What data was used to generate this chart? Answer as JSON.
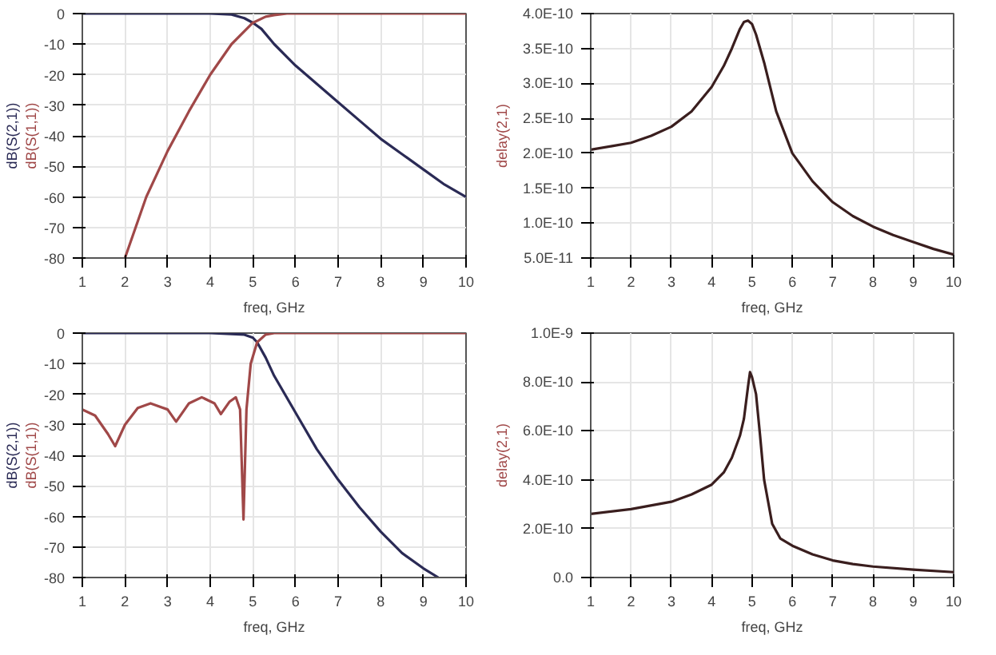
{
  "chart_data": [
    {
      "type": "line",
      "xlabel": "freq, GHz",
      "xlim": [
        1,
        10
      ],
      "xticks": [
        1,
        2,
        3,
        4,
        5,
        6,
        7,
        8,
        9,
        10
      ],
      "ylim": [
        -80,
        0
      ],
      "yticks": [
        -80,
        -70,
        -60,
        -50,
        -40,
        -30,
        -20,
        -10,
        0
      ],
      "grid": true,
      "series": [
        {
          "name": "dB(S(2,1))",
          "color": "#2a2a55",
          "x": [
            1,
            2,
            3,
            4,
            4.5,
            4.8,
            5,
            5.2,
            5.5,
            6,
            6.5,
            7,
            7.5,
            8,
            8.5,
            9,
            9.5,
            10
          ],
          "values": [
            0,
            0,
            0,
            0,
            -0.3,
            -1.5,
            -3,
            -5,
            -10,
            -17,
            -23,
            -29,
            -35,
            -41,
            -46,
            -51,
            -56,
            -60
          ]
        },
        {
          "name": "dB(S(1,1))",
          "color": "#a04848",
          "x": [
            2,
            2.5,
            3,
            3.5,
            4,
            4.5,
            5,
            5.3,
            5.5,
            5.8,
            6,
            7,
            8,
            9,
            10
          ],
          "values": [
            -80,
            -60,
            -45,
            -32,
            -20,
            -10,
            -3,
            -1,
            -0.5,
            0,
            0,
            0,
            0,
            0,
            0
          ]
        }
      ]
    },
    {
      "type": "line",
      "xlabel": "freq, GHz",
      "ylabel": "delay(2,1)",
      "xlim": [
        1,
        10
      ],
      "xticks": [
        1,
        2,
        3,
        4,
        5,
        6,
        7,
        8,
        9,
        10
      ],
      "ylim": [
        5e-11,
        4e-10
      ],
      "yticks": [
        {
          "value": 5e-11,
          "label": "5.0E-11"
        },
        {
          "value": 1e-10,
          "label": "1.0E-10"
        },
        {
          "value": 1.5e-10,
          "label": "1.5E-10"
        },
        {
          "value": 2e-10,
          "label": "2.0E-10"
        },
        {
          "value": 2.5e-10,
          "label": "2.5E-10"
        },
        {
          "value": 3e-10,
          "label": "3.0E-10"
        },
        {
          "value": 3.5e-10,
          "label": "3.5E-10"
        },
        {
          "value": 4e-10,
          "label": "4.0E-10"
        }
      ],
      "grid": true,
      "series": [
        {
          "color": "#3a1e1e",
          "x": [
            1,
            1.5,
            2,
            2.5,
            3,
            3.5,
            4,
            4.3,
            4.5,
            4.7,
            4.8,
            4.9,
            5,
            5.1,
            5.3,
            5.6,
            6,
            6.5,
            7,
            7.5,
            8,
            8.5,
            9,
            9.5,
            10
          ],
          "values": [
            2.05e-10,
            2.1e-10,
            2.15e-10,
            2.25e-10,
            2.38e-10,
            2.6e-10,
            2.95e-10,
            3.25e-10,
            3.5e-10,
            3.78e-10,
            3.88e-10,
            3.9e-10,
            3.85e-10,
            3.7e-10,
            3.3e-10,
            2.6e-10,
            2e-10,
            1.6e-10,
            1.3e-10,
            1.1e-10,
            9.5e-11,
            8.3e-11,
            7.3e-11,
            6.3e-11,
            5.5e-11
          ]
        }
      ]
    },
    {
      "type": "line",
      "xlabel": "freq, GHz",
      "xlim": [
        1,
        10
      ],
      "xticks": [
        1,
        2,
        3,
        4,
        5,
        6,
        7,
        8,
        9,
        10
      ],
      "ylim": [
        -80,
        0
      ],
      "yticks": [
        -80,
        -70,
        -60,
        -50,
        -40,
        -30,
        -20,
        -10,
        0
      ],
      "grid": true,
      "series": [
        {
          "name": "dB(S(2,1))",
          "color": "#2a2a55",
          "x": [
            1,
            2,
            3,
            4,
            4.8,
            5,
            5.1,
            5.3,
            5.5,
            6,
            6.5,
            7,
            7.5,
            8,
            8.5,
            9,
            9.35
          ],
          "values": [
            0,
            0,
            0,
            0,
            -0.5,
            -1.5,
            -3,
            -8,
            -14,
            -26,
            -38,
            -48,
            -57,
            -65,
            -72,
            -77,
            -80
          ]
        },
        {
          "name": "dB(S(1,1))",
          "color": "#a04848",
          "x": [
            1,
            1.3,
            1.6,
            1.77,
            2,
            2.3,
            2.6,
            3,
            3.2,
            3.5,
            3.8,
            4.1,
            4.25,
            4.45,
            4.6,
            4.7,
            4.78,
            4.85,
            4.95,
            5.1,
            5.3,
            5.5,
            6,
            7,
            8,
            9,
            10
          ],
          "values": [
            -25,
            -27,
            -33,
            -37,
            -30,
            -24.5,
            -23,
            -25,
            -29,
            -23,
            -21,
            -23,
            -26.5,
            -22.5,
            -21,
            -25,
            -61,
            -25,
            -10,
            -3,
            -0.5,
            0,
            0,
            0,
            0,
            0,
            0
          ]
        }
      ]
    },
    {
      "type": "line",
      "xlabel": "freq, GHz",
      "ylabel": "delay(2,1)",
      "xlim": [
        1,
        10
      ],
      "xticks": [
        1,
        2,
        3,
        4,
        5,
        6,
        7,
        8,
        9,
        10
      ],
      "ylim": [
        0,
        1e-09
      ],
      "yticks": [
        {
          "value": 0,
          "label": "0.0"
        },
        {
          "value": 2e-10,
          "label": "2.0E-10"
        },
        {
          "value": 4e-10,
          "label": "4.0E-10"
        },
        {
          "value": 6e-10,
          "label": "6.0E-10"
        },
        {
          "value": 8e-10,
          "label": "8.0E-10"
        },
        {
          "value": 1e-09,
          "label": "1.0E-9"
        }
      ],
      "grid": true,
      "series": [
        {
          "color": "#3a1e1e",
          "x": [
            1,
            2,
            3,
            3.5,
            4,
            4.3,
            4.5,
            4.7,
            4.8,
            4.9,
            4.95,
            5,
            5.1,
            5.2,
            5.3,
            5.5,
            5.7,
            6,
            6.5,
            7,
            7.5,
            8,
            9,
            10
          ],
          "values": [
            2.6e-10,
            2.8e-10,
            3.1e-10,
            3.4e-10,
            3.8e-10,
            4.3e-10,
            4.9e-10,
            5.8e-10,
            6.5e-10,
            7.8e-10,
            8.4e-10,
            8.2e-10,
            7.5e-10,
            5.8e-10,
            4e-10,
            2.2e-10,
            1.6e-10,
            1.3e-10,
            9.5e-11,
            7e-11,
            5.5e-11,
            4.5e-11,
            3.2e-11,
            2.2e-11
          ]
        }
      ]
    }
  ]
}
